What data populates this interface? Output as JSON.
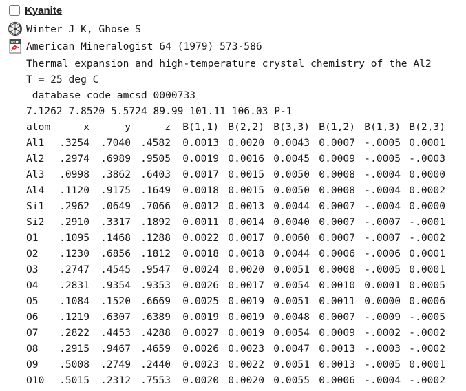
{
  "entry": {
    "title": "Kyanite",
    "authors": "Winter J K, Ghose S",
    "journal": "American Mineralogist 64 (1979) 573-586",
    "article_title": "Thermal expansion and high-temperature crystal chemistry of the Al2",
    "temperature": "T = 25 deg C",
    "database_code": "_database_code_amcsd 0000733",
    "cell_parameters": "7.1262 7.8520 5.5724 89.99 101.11 106.03 P-1"
  },
  "icons": {
    "authors": "crystal-structure-icon",
    "journal": "pdf-icon"
  },
  "table": {
    "headers": [
      "atom",
      "x",
      "y",
      "z",
      "B(1,1)",
      "B(2,2)",
      "B(3,3)",
      "B(1,2)",
      "B(1,3)",
      "B(2,3)"
    ],
    "rows": [
      [
        "Al1",
        ".3254",
        ".7040",
        ".4582",
        "0.0013",
        "0.0020",
        "0.0043",
        "0.0007",
        "-.0005",
        "0.0001"
      ],
      [
        "Al2",
        ".2974",
        ".6989",
        ".9505",
        "0.0019",
        "0.0016",
        "0.0045",
        "0.0009",
        "-.0005",
        "-.0003"
      ],
      [
        "Al3",
        ".0998",
        ".3862",
        ".6403",
        "0.0017",
        "0.0015",
        "0.0050",
        "0.0008",
        "-.0004",
        "0.0000"
      ],
      [
        "Al4",
        ".1120",
        ".9175",
        ".1649",
        "0.0018",
        "0.0015",
        "0.0050",
        "0.0008",
        "-.0004",
        "0.0002"
      ],
      [
        "Si1",
        ".2962",
        ".0649",
        ".7066",
        "0.0012",
        "0.0013",
        "0.0044",
        "0.0007",
        "-.0004",
        "0.0000"
      ],
      [
        "Si2",
        ".2910",
        ".3317",
        ".1892",
        "0.0011",
        "0.0014",
        "0.0040",
        "0.0007",
        "-.0007",
        "-.0001"
      ],
      [
        "O1",
        ".1095",
        ".1468",
        ".1288",
        "0.0022",
        "0.0017",
        "0.0060",
        "0.0007",
        "-.0007",
        "-.0002"
      ],
      [
        "O2",
        ".1230",
        ".6856",
        ".1812",
        "0.0018",
        "0.0018",
        "0.0044",
        "0.0006",
        "-.0006",
        "0.0001"
      ],
      [
        "O3",
        ".2747",
        ".4545",
        ".9547",
        "0.0024",
        "0.0020",
        "0.0051",
        "0.0008",
        "-.0005",
        "0.0001"
      ],
      [
        "O4",
        ".2831",
        ".9354",
        ".9353",
        "0.0026",
        "0.0017",
        "0.0054",
        "0.0010",
        "0.0001",
        "0.0005"
      ],
      [
        "O5",
        ".1084",
        ".1520",
        ".6669",
        "0.0025",
        "0.0019",
        "0.0051",
        "0.0011",
        "0.0000",
        "0.0006"
      ],
      [
        "O6",
        ".1219",
        ".6307",
        ".6389",
        "0.0019",
        "0.0019",
        "0.0048",
        "0.0007",
        "-.0009",
        "-.0005"
      ],
      [
        "O7",
        ".2822",
        ".4453",
        ".4288",
        "0.0027",
        "0.0019",
        "0.0054",
        "0.0009",
        "-.0002",
        "-.0002"
      ],
      [
        "O8",
        ".2915",
        ".9467",
        ".4659",
        "0.0026",
        "0.0023",
        "0.0047",
        "0.0013",
        "-.0003",
        "-.0002"
      ],
      [
        "O9",
        ".5008",
        ".2749",
        ".2440",
        "0.0023",
        "0.0022",
        "0.0051",
        "0.0013",
        "-.0005",
        "0.0001"
      ],
      [
        "O10",
        ".5015",
        ".2312",
        ".7553",
        "0.0020",
        "0.0020",
        "0.0055",
        "0.0006",
        "-.0004",
        "-.0002"
      ]
    ]
  }
}
